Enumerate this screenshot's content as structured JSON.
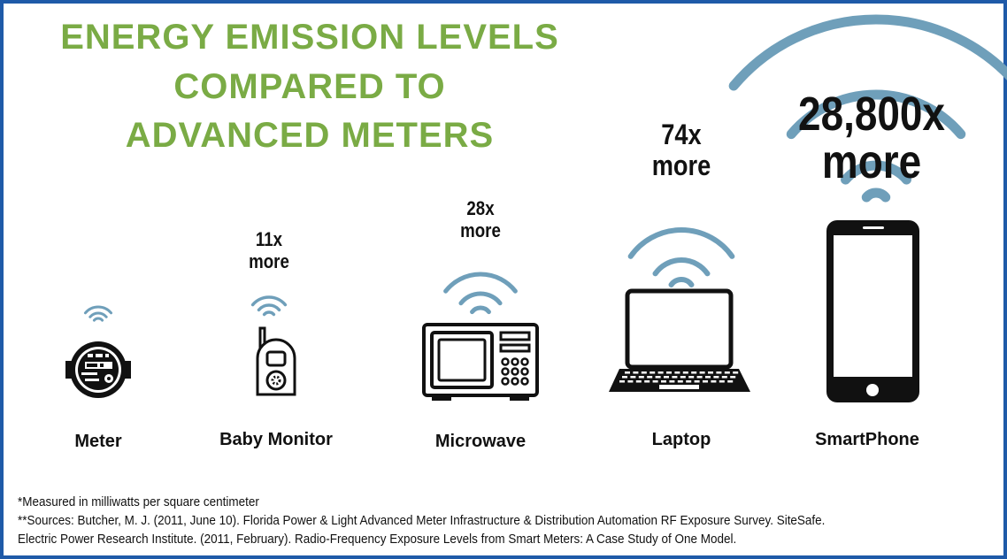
{
  "title_lines": [
    "ENERGY EMISSION LEVELS",
    "COMPARED TO",
    "ADVANCED METERS"
  ],
  "colors": {
    "title": "#7aab45",
    "signal": "#6f9fba",
    "frame": "#1f5aa8",
    "icon": "#111111"
  },
  "devices": [
    {
      "name": "Meter",
      "multiplier": "",
      "more": "",
      "icon": "meter-icon"
    },
    {
      "name": "Baby Monitor",
      "multiplier": "11x",
      "more": "more",
      "icon": "baby-monitor-icon"
    },
    {
      "name": "Microwave",
      "multiplier": "28x",
      "more": "more",
      "icon": "microwave-icon"
    },
    {
      "name": "Laptop",
      "multiplier": "74x",
      "more": "more",
      "icon": "laptop-icon"
    },
    {
      "name": "SmartPhone",
      "multiplier": "28,800x",
      "more": "more",
      "icon": "smartphone-icon"
    }
  ],
  "footnotes": [
    "*Measured in milliwatts per square centimeter",
    "**Sources: Butcher, M. J. (2011, June 10). Florida Power & Light Advanced Meter Infrastructure & Distribution Automation RF Exposure Survey. SiteSafe.",
    "Electric Power Research Institute. (2011, February). Radio-Frequency Exposure Levels from Smart Meters: A Case Study of One Model."
  ]
}
